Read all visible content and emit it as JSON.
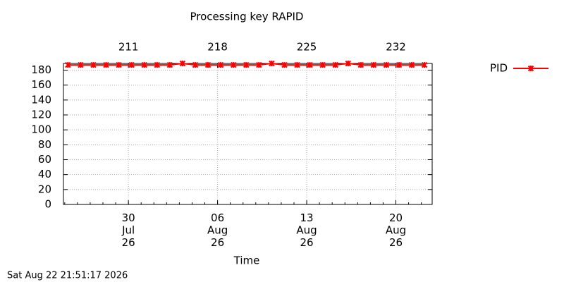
{
  "chart_data": {
    "type": "line",
    "title": "Processing key RAPID",
    "xlabel": "Time",
    "footer": "Sat Aug 22 21:51:17 2026",
    "x": [
      206.25,
      207.25,
      208.25,
      209.25,
      210.25,
      211.25,
      212.25,
      213.25,
      214.25,
      215.25,
      216.25,
      217.25,
      218.25,
      219.25,
      220.25,
      221.25,
      222.25,
      223.25,
      224.25,
      225.25,
      226.25,
      227.25,
      228.25,
      229.25,
      230.25,
      231.25,
      232.25,
      233.25,
      234.25
    ],
    "series": [
      {
        "name": "PID",
        "color": "#ff0000",
        "values": [
          187,
          187,
          187,
          187,
          187,
          187,
          187,
          187,
          187,
          189,
          187,
          187,
          187,
          187,
          187,
          187,
          189,
          187,
          187,
          187,
          187,
          187,
          189,
          187,
          187,
          187,
          187,
          187,
          187
        ]
      }
    ],
    "xlim": [
      205.9,
      234.85
    ],
    "xticks": [
      {
        "value": 211,
        "label": "30\nJul\n26"
      },
      {
        "value": 218,
        "label": "06\nAug\n26"
      },
      {
        "value": 225,
        "label": "13\nAug\n26"
      },
      {
        "value": 232,
        "label": "20\nAug\n26"
      }
    ],
    "x2ticks": [
      211,
      218,
      225,
      232
    ],
    "ylim": [
      0,
      189
    ],
    "yticks": [
      0,
      20,
      40,
      60,
      80,
      100,
      120,
      140,
      160,
      180
    ],
    "grid": true,
    "legend": "top-right"
  }
}
